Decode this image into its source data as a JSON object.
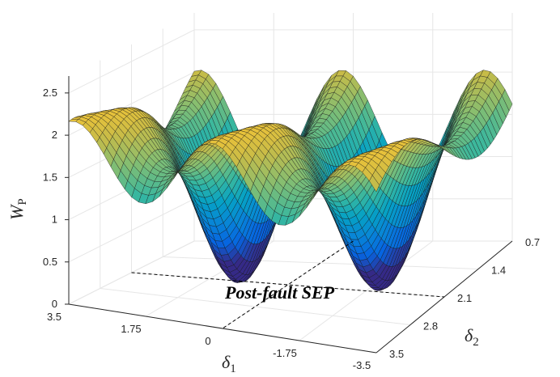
{
  "chart_data": {
    "type": "surface3d",
    "title": "",
    "colormap": "parula",
    "grid": true,
    "z_function": "1.3 + 0.6*cos(2*d1) + 0.6*cos(2*d2) - 0.3*cos(2*(d1+d2))",
    "x": {
      "symbol": "δ",
      "subscript": "1",
      "range": [
        -3.5,
        3.5
      ],
      "ticks": [
        3.5,
        1.75,
        0,
        -1.75,
        -3.5
      ],
      "tick_labels": [
        "3.5",
        "1.75",
        "0",
        "-1.75",
        "-3.5"
      ]
    },
    "y": {
      "symbol": "δ",
      "subscript": "2",
      "range": [
        0.7,
        3.5
      ],
      "ticks": [
        0.7,
        1.4,
        2.1,
        2.8,
        3.5
      ],
      "tick_labels": [
        "0.7",
        "1.4",
        "2.1",
        "2.8",
        "3.5"
      ]
    },
    "z": {
      "symbol": "W",
      "subscript": "P",
      "range": [
        0,
        2.7
      ],
      "ticks": [
        0,
        0.5,
        1,
        1.5,
        2,
        2.5
      ],
      "tick_labels": [
        "0",
        "0.5",
        "1",
        "1.5",
        "2",
        "2.5"
      ]
    },
    "annotation": {
      "text": "Post-fault SEP",
      "point": [
        0,
        2.1,
        0
      ]
    }
  }
}
